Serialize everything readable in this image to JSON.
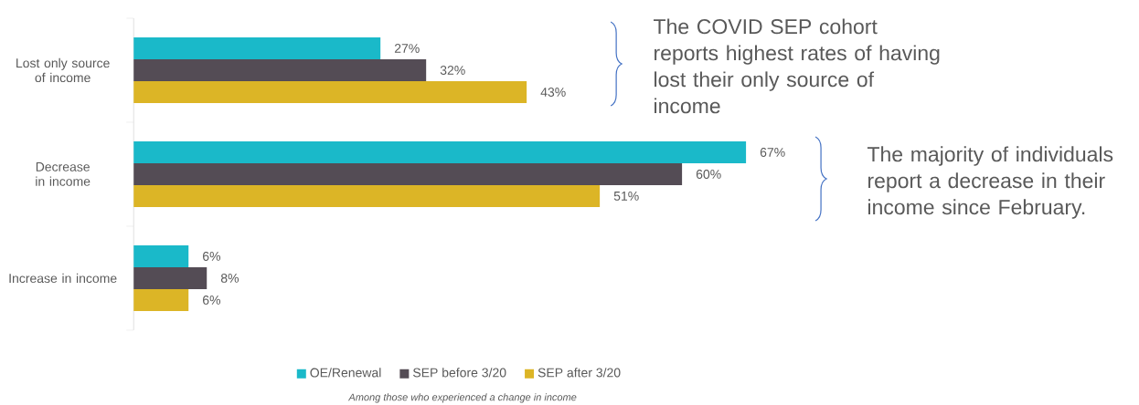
{
  "chart_data": {
    "type": "bar",
    "orientation": "horizontal",
    "categories": [
      "Lost only source of income",
      "Decrease in income",
      "Increase in income"
    ],
    "series": [
      {
        "name": "OE/Renewal",
        "color": "#1ab9c9",
        "values": [
          27,
          67,
          6
        ],
        "value_labels": [
          "27%",
          "67%",
          "6%"
        ]
      },
      {
        "name": "SEP before 3/20",
        "color": "#544c55",
        "values": [
          32,
          60,
          8
        ],
        "value_labels": [
          "32%",
          "60%",
          "8%"
        ]
      },
      {
        "name": "SEP after 3/20",
        "color": "#dcb526",
        "values": [
          43,
          51,
          6
        ],
        "value_labels": [
          "43%",
          "51%",
          "6%"
        ]
      }
    ],
    "legend": "bottom",
    "annotations": [
      "The COVID SEP cohort reports highest rates of having lost their only source of income",
      "The majority of individuals report a decrease in their income since February.",
      "Among those who experienced a change in income"
    ]
  }
}
